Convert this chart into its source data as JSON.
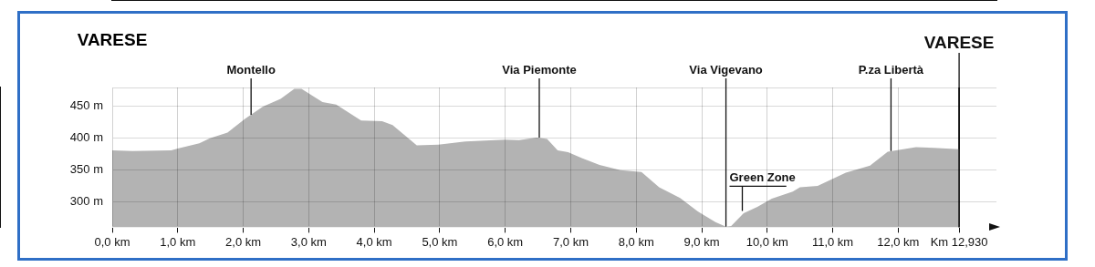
{
  "chart_data": {
    "type": "area",
    "title": "VARESE",
    "series": [
      {
        "color": "#b3b3b3",
        "x": [
          0,
          0.31,
          0.9,
          1.0,
          1.33,
          1.49,
          1.76,
          2.03,
          2.3,
          2.57,
          2.78,
          2.89,
          3.21,
          3.42,
          3.8,
          4.12,
          4.28,
          4.65,
          4.98,
          5.4,
          6.0,
          6.21,
          6.48,
          6.64,
          6.8,
          6.96,
          7.17,
          7.44,
          7.76,
          8.08,
          8.35,
          8.67,
          8.94,
          9.21,
          9.37,
          9.45,
          9.64,
          9.85,
          10.07,
          10.39,
          10.5,
          10.77,
          11.2,
          11.57,
          11.84,
          12.27,
          12.54,
          12.93
        ],
        "values": [
          381,
          380,
          381,
          384,
          392,
          400,
          409,
          431,
          450,
          462,
          478,
          478,
          457,
          453,
          428,
          427,
          421,
          389,
          390,
          395,
          398,
          397,
          401,
          399,
          381,
          378,
          369,
          358,
          350,
          347,
          323,
          306,
          285,
          268,
          261,
          262,
          282,
          292,
          305,
          316,
          323,
          325,
          346,
          357,
          379,
          386,
          385,
          383
        ]
      }
    ],
    "xlim": [
      0,
      13.5
    ],
    "xticks": [
      {
        "value": 0,
        "label": "0,0 km"
      },
      {
        "value": 1,
        "label": "1,0 km"
      },
      {
        "value": 2,
        "label": "2,0 km"
      },
      {
        "value": 3,
        "label": "3,0 km"
      },
      {
        "value": 4,
        "label": "4,0 km"
      },
      {
        "value": 5,
        "label": "5,0 km"
      },
      {
        "value": 6,
        "label": "6,0 km"
      },
      {
        "value": 7,
        "label": "7,0 km"
      },
      {
        "value": 8,
        "label": "8,0 km"
      },
      {
        "value": 9,
        "label": "9,0 km"
      },
      {
        "value": 10,
        "label": "10,0 km"
      },
      {
        "value": 11,
        "label": "11,0 km"
      },
      {
        "value": 12,
        "label": "12,0 km"
      },
      {
        "value": 12.93,
        "label": "Km 12,930"
      }
    ],
    "ylim": [
      260,
      480
    ],
    "yticks": [
      {
        "value": 300,
        "label": "300 m"
      },
      {
        "value": 350,
        "label": "350 m"
      },
      {
        "value": 400,
        "label": "400 m"
      },
      {
        "value": 450,
        "label": "450 m"
      },
      {
        "value": 480,
        "label": null
      }
    ],
    "grid": true,
    "legend": false,
    "marker": "none",
    "ref_lines": [
      {
        "axis": "x",
        "value": 12.93,
        "color": "#000000"
      }
    ],
    "annotations": [
      {
        "text": "Montello",
        "x": 2.12,
        "y": 437
      },
      {
        "text": "Via Piemonte",
        "x": 6.52,
        "y": 401
      },
      {
        "text": "Via Vigevano",
        "x": 9.37,
        "y": 261
      },
      {
        "text": "Green Zone",
        "x": 9.62,
        "y": 280
      },
      {
        "text": "P.za Libertà",
        "x": 11.89,
        "y": 380
      },
      {
        "text": "VARESE",
        "x": 12.93,
        "y": 383
      }
    ]
  }
}
